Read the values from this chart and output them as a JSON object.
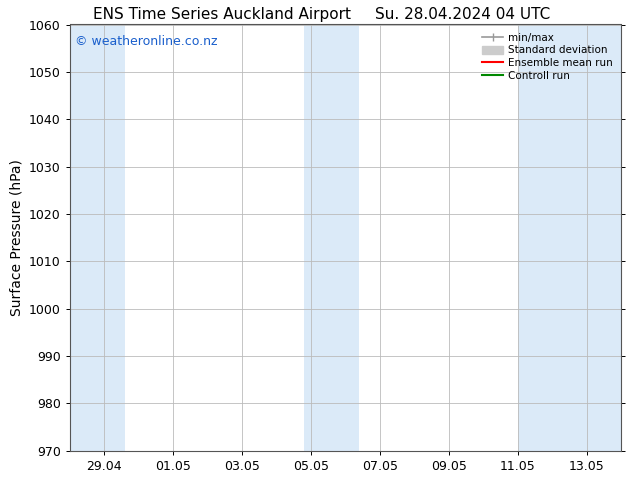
{
  "title_left": "ENS Time Series Auckland Airport",
  "title_right": "Su. 28.04.2024 04 UTC",
  "ylabel": "Surface Pressure (hPa)",
  "watermark": "© weatheronline.co.nz",
  "watermark_color": "#1a5fcc",
  "ylim": [
    970,
    1060
  ],
  "yticks": [
    970,
    980,
    990,
    1000,
    1010,
    1020,
    1030,
    1040,
    1050,
    1060
  ],
  "xtick_labels": [
    "29.04",
    "01.05",
    "03.05",
    "05.05",
    "07.05",
    "09.05",
    "11.05",
    "13.05"
  ],
  "xtick_positions": [
    1,
    3,
    5,
    7,
    9,
    11,
    13,
    15
  ],
  "xlim": [
    0,
    16
  ],
  "shaded_regions": [
    {
      "xmin": 0,
      "xmax": 1.6
    },
    {
      "xmin": 6.8,
      "xmax": 8.4
    },
    {
      "xmin": 13.0,
      "xmax": 16.0
    }
  ],
  "shaded_color": "#dbeaf8",
  "grid_color": "#bbbbbb",
  "background_color": "#ffffff",
  "legend_items": [
    {
      "label": "min/max",
      "color": "#999999",
      "linestyle": "-",
      "linewidth": 1.2
    },
    {
      "label": "Standard deviation",
      "color": "#cccccc",
      "linestyle": "-",
      "linewidth": 6
    },
    {
      "label": "Ensemble mean run",
      "color": "#ff0000",
      "linestyle": "-",
      "linewidth": 1.5
    },
    {
      "label": "Controll run",
      "color": "#008800",
      "linestyle": "-",
      "linewidth": 1.5
    }
  ],
  "title_fontsize": 11,
  "ylabel_fontsize": 10,
  "tick_fontsize": 9,
  "watermark_fontsize": 9
}
